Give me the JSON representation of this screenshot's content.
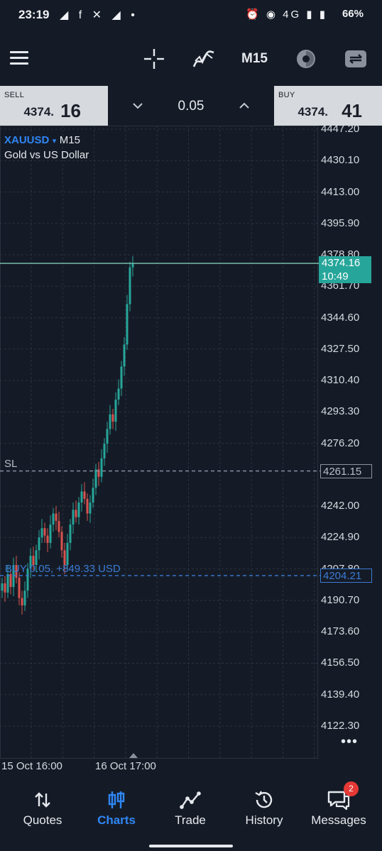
{
  "status_bar": {
    "time": "23:19",
    "notifications": "◢ f ✕ ◢ •",
    "icons": "⏰ ◉ 4G ▮ ▮",
    "battery": "66%"
  },
  "toolbar": {
    "menu_icon": "hamburger-icon",
    "crosshair_icon": "crosshair-icon",
    "indicators_icon": "indicators-icon",
    "timeframe": "M15",
    "objects_icon": "objects-icon",
    "trade_icon": "trade-icon"
  },
  "trade_panel": {
    "sell_label": "SELL",
    "sell_price_small": "4374.",
    "sell_price_big": "16",
    "volume": "0.05",
    "buy_label": "BUY",
    "buy_price_small": "4374.",
    "buy_price_big": "41",
    "colors": {
      "panel_bg": "#d6d9dd"
    }
  },
  "chart_info": {
    "symbol": "XAUUSD",
    "symbol_arrow": "▾",
    "timeframe": "M15",
    "description": "Gold vs US Dollar"
  },
  "chart_data": {
    "type": "candlestick",
    "price_ticks": [
      "4447.20",
      "4430.10",
      "4413.00",
      "4395.90",
      "4378.80",
      "4361.70",
      "4344.60",
      "4327.50",
      "4310.40",
      "4293.30",
      "4276.20",
      "4242.00",
      "4224.90",
      "4207.80",
      "4190.70",
      "4173.60",
      "4156.50",
      "4139.40",
      "4122.30"
    ],
    "time_ticks": [
      "15 Oct 16:00",
      "16 Oct 17:00"
    ],
    "ylim": [
      4115,
      4455
    ],
    "current_price": "4374.16",
    "current_time": "10:49",
    "sl_tag": "SL",
    "sl_price": "4261.15",
    "buy_tag": "BUY 0.05,  +849.33 USD",
    "buy_price": "4204.21",
    "candles_close": [
      4200,
      4195,
      4205,
      4198,
      4210,
      4203,
      4192,
      4188,
      4196,
      4208,
      4215,
      4210,
      4218,
      4225,
      4230,
      4226,
      4222,
      4232,
      4238,
      4234,
      4228,
      4218,
      4210,
      4222,
      4232,
      4240,
      4236,
      4244,
      4250,
      4246,
      4238,
      4244,
      4252,
      4262,
      4258,
      4268,
      4276,
      4284,
      4292,
      4288,
      4300,
      4306,
      4318,
      4330,
      4352,
      4372,
      4374.16
    ],
    "colors": {
      "up": "#26a69a",
      "down": "#d9534f",
      "grid": "#2a323f",
      "price_line": "#7fc9b7",
      "sl_line": "#8d94a8",
      "buy_line": "#3a7bd5"
    }
  },
  "more_icon": "more-dots-icon",
  "more_text": "•••",
  "bottom_nav": {
    "items": [
      {
        "label": "Quotes",
        "icon": "quotes-icon"
      },
      {
        "label": "Charts",
        "icon": "charts-icon"
      },
      {
        "label": "Trade",
        "icon": "trade-chart-icon"
      },
      {
        "label": "History",
        "icon": "history-icon"
      },
      {
        "label": "Messages",
        "icon": "messages-icon",
        "badge": "2"
      }
    ],
    "active_color": "#2f86f6"
  }
}
